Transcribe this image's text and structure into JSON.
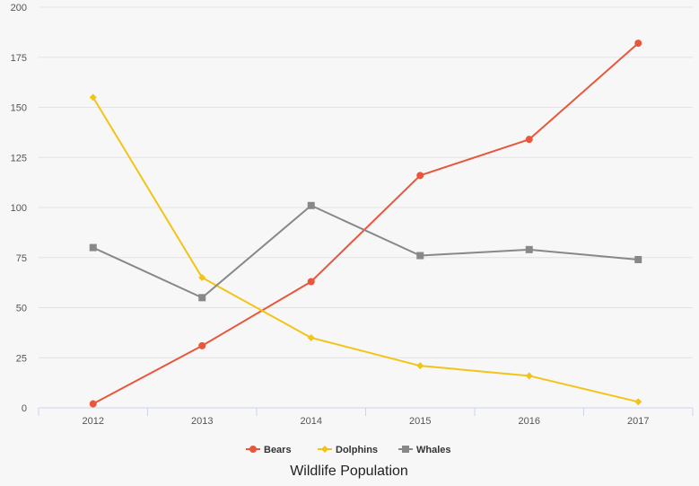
{
  "chart_data": {
    "type": "line",
    "title": "Wildlife Population",
    "xlabel": "",
    "ylabel": "",
    "categories": [
      "2012",
      "2013",
      "2014",
      "2015",
      "2016",
      "2017"
    ],
    "ylim": [
      0,
      200
    ],
    "yticks": [
      0,
      25,
      50,
      75,
      100,
      125,
      150,
      175,
      200
    ],
    "grid": true,
    "legend_position": "bottom",
    "series": [
      {
        "name": "Bears",
        "color": "#e8573c",
        "marker": "circle",
        "values": [
          2,
          31,
          63,
          116,
          134,
          182
        ]
      },
      {
        "name": "Dolphins",
        "color": "#f2c417",
        "marker": "diamond",
        "values": [
          155,
          65,
          35,
          21,
          16,
          3
        ]
      },
      {
        "name": "Whales",
        "color": "#888888",
        "marker": "square",
        "values": [
          80,
          55,
          101,
          76,
          79,
          74
        ]
      }
    ]
  }
}
